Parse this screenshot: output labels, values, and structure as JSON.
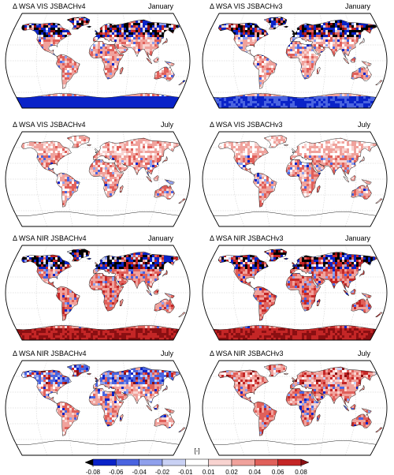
{
  "panels": [
    {
      "title_left": "Δ WSA VIS JSBACHv4",
      "title_right": "January",
      "band": "VIS",
      "month": "January",
      "pattern": {
        "north": -0.08,
        "north_mixed": true,
        "land": 0.03,
        "antarctica": -0.07
      }
    },
    {
      "title_left": "Δ WSA VIS JSBACHv3",
      "title_right": "January",
      "band": "VIS",
      "month": "January",
      "pattern": {
        "north": -0.08,
        "north_mixed": true,
        "land": 0.025,
        "antarctica": -0.06
      }
    },
    {
      "title_left": "Δ WSA VIS JSBACHv4",
      "title_right": "July",
      "band": "VIS",
      "month": "July",
      "pattern": {
        "north": 0.02,
        "north_mixed": false,
        "land": 0.03,
        "antarctica": 0.0
      }
    },
    {
      "title_left": "Δ WSA VIS JSBACHv3",
      "title_right": "July",
      "band": "VIS",
      "month": "July",
      "pattern": {
        "north": 0.015,
        "north_mixed": false,
        "land": 0.03,
        "antarctica": 0.0
      }
    },
    {
      "title_left": "Δ WSA NIR JSBACHv4",
      "title_right": "January",
      "band": "NIR",
      "month": "January",
      "pattern": {
        "north": -0.08,
        "north_mixed": true,
        "land": 0.04,
        "antarctica": 0.08
      }
    },
    {
      "title_left": "Δ WSA NIR JSBACHv3",
      "title_right": "January",
      "band": "NIR",
      "month": "January",
      "pattern": {
        "north": -0.08,
        "north_mixed": true,
        "land": 0.045,
        "antarctica": 0.08
      }
    },
    {
      "title_left": "Δ WSA NIR JSBACHv4",
      "title_right": "July",
      "band": "NIR",
      "month": "July",
      "pattern": {
        "north": -0.05,
        "north_mixed": true,
        "land": 0.03,
        "antarctica": 0.0
      }
    },
    {
      "title_left": "Δ WSA NIR JSBACHv3",
      "title_right": "July",
      "band": "NIR",
      "month": "July",
      "pattern": {
        "north": 0.03,
        "north_mixed": true,
        "land": 0.04,
        "antarctica": 0.0
      }
    }
  ],
  "colorbar": {
    "unit": "[-]",
    "ticks": [
      "-0.08",
      "-0.06",
      "-0.04",
      "-0.02",
      "-0.01",
      "0.01",
      "0.02",
      "0.04",
      "0.06",
      "0.08"
    ],
    "bins": [
      "#000000",
      "#0a23c8",
      "#4a64e0",
      "#8fa0ec",
      "#c9d1f4",
      "#ffffff",
      "#f8d3d0",
      "#f0a29c",
      "#e0605a",
      "#c42626",
      "#8a0f12"
    ],
    "extend": "both"
  },
  "map_colors": {
    "coastline": "#222222",
    "grid": "#bdbdbd",
    "frame": "#000000",
    "land_fill": "#ffffff"
  }
}
